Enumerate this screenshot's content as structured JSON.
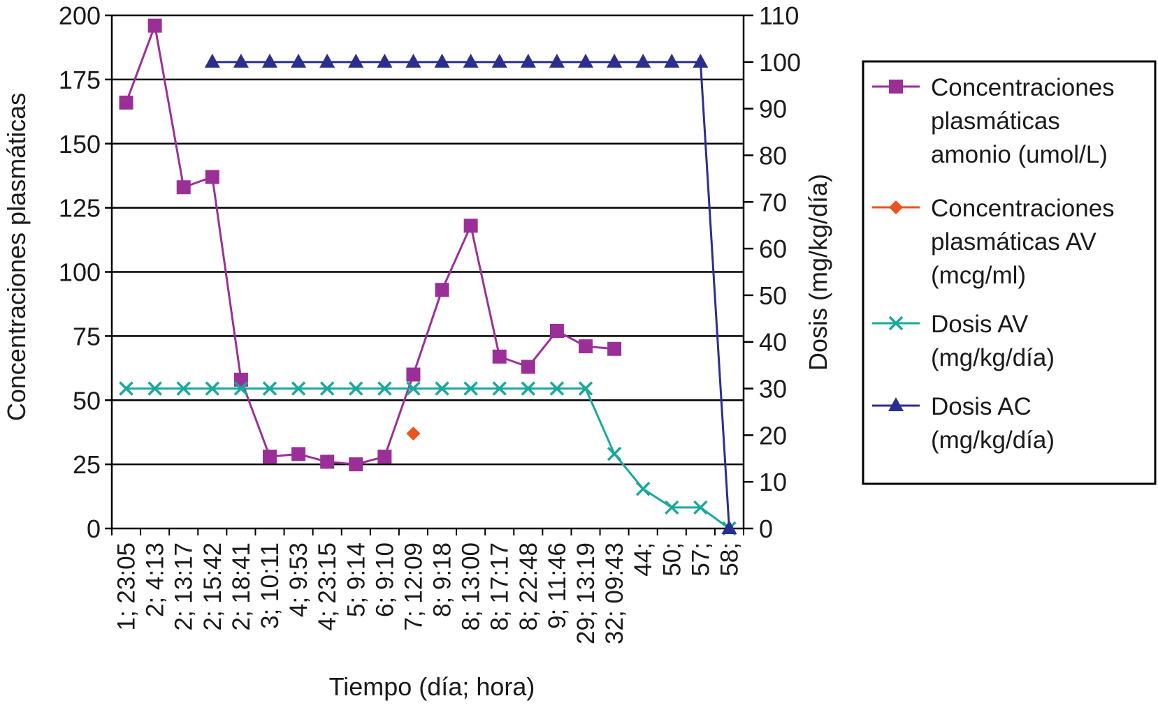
{
  "chart_data": {
    "type": "line",
    "xlabel": "Tiempo (día; hora)",
    "ylabel_left": "Concentraciones plasmáticas",
    "ylabel_right": "Dosis (mg/kg/día)",
    "categories": [
      "1; 23:05",
      "2; 4:13",
      "2; 13:17",
      "2; 15:42",
      "2; 18:41",
      "3; 10:11",
      "4; 9:53",
      "4; 23:15",
      "5; 9:14",
      "6; 9:10",
      "7; 12:09",
      "8; 9:18",
      "8; 13:00",
      "8; 17:17",
      "8; 22:48",
      "9; 11:46",
      "29; 13:19",
      "32; 09:43",
      "44;",
      "50;",
      "57;",
      "58;"
    ],
    "left_axis": {
      "min": 0,
      "max": 200,
      "ticks": [
        "0",
        "25",
        "50",
        "75",
        "100",
        "125",
        "150",
        "175",
        "200"
      ]
    },
    "right_axis": {
      "min": 0,
      "max": 110,
      "ticks": [
        "0",
        "10",
        "20",
        "30",
        "40",
        "50",
        "60",
        "70",
        "80",
        "90",
        "100",
        "110"
      ]
    },
    "grid": "horizontal lines on left axis",
    "legend_position": "right",
    "series": [
      {
        "name": "Concentraciones plasmáticas amonio (umol/L)",
        "legend_lines": [
          "Concentraciones",
          "plasmáticas",
          "amonio (umol/L)"
        ],
        "axis": "left",
        "marker": "square",
        "color": "#9b2f98",
        "values": [
          166,
          196,
          133,
          137,
          58,
          28,
          29,
          26,
          25,
          28,
          60,
          93,
          118,
          67,
          63,
          77,
          71,
          70,
          null,
          null,
          null,
          null
        ]
      },
      {
        "name": "Concentraciones plasmáticas AV (mcg/ml)",
        "legend_lines": [
          "Concentraciones",
          "plasmáticas AV",
          "(mcg/ml)"
        ],
        "axis": "left",
        "marker": "diamond",
        "color": "#e8541e",
        "values": [
          null,
          null,
          null,
          null,
          null,
          null,
          null,
          null,
          null,
          null,
          37,
          null,
          null,
          null,
          null,
          null,
          null,
          null,
          null,
          null,
          null,
          null
        ]
      },
      {
        "name": "Dosis AV (mg/kg/día)",
        "legend_lines": [
          "Dosis AV",
          "(mg/kg/día)"
        ],
        "axis": "right",
        "marker": "x",
        "color": "#1aa89d",
        "values": [
          30,
          30,
          30,
          30,
          30,
          30,
          30,
          30,
          30,
          30,
          30,
          30,
          30,
          30,
          30,
          30,
          30,
          16,
          8.5,
          4.5,
          4.5,
          0
        ]
      },
      {
        "name": "Dosis AC (mg/kg/día)",
        "legend_lines": [
          "Dosis AC",
          "(mg/kg/día)"
        ],
        "axis": "right",
        "marker": "triangle",
        "color": "#2a2f8f",
        "values": [
          null,
          null,
          null,
          100,
          100,
          100,
          100,
          100,
          100,
          100,
          100,
          100,
          100,
          100,
          100,
          100,
          100,
          100,
          100,
          100,
          100,
          0
        ]
      }
    ]
  }
}
